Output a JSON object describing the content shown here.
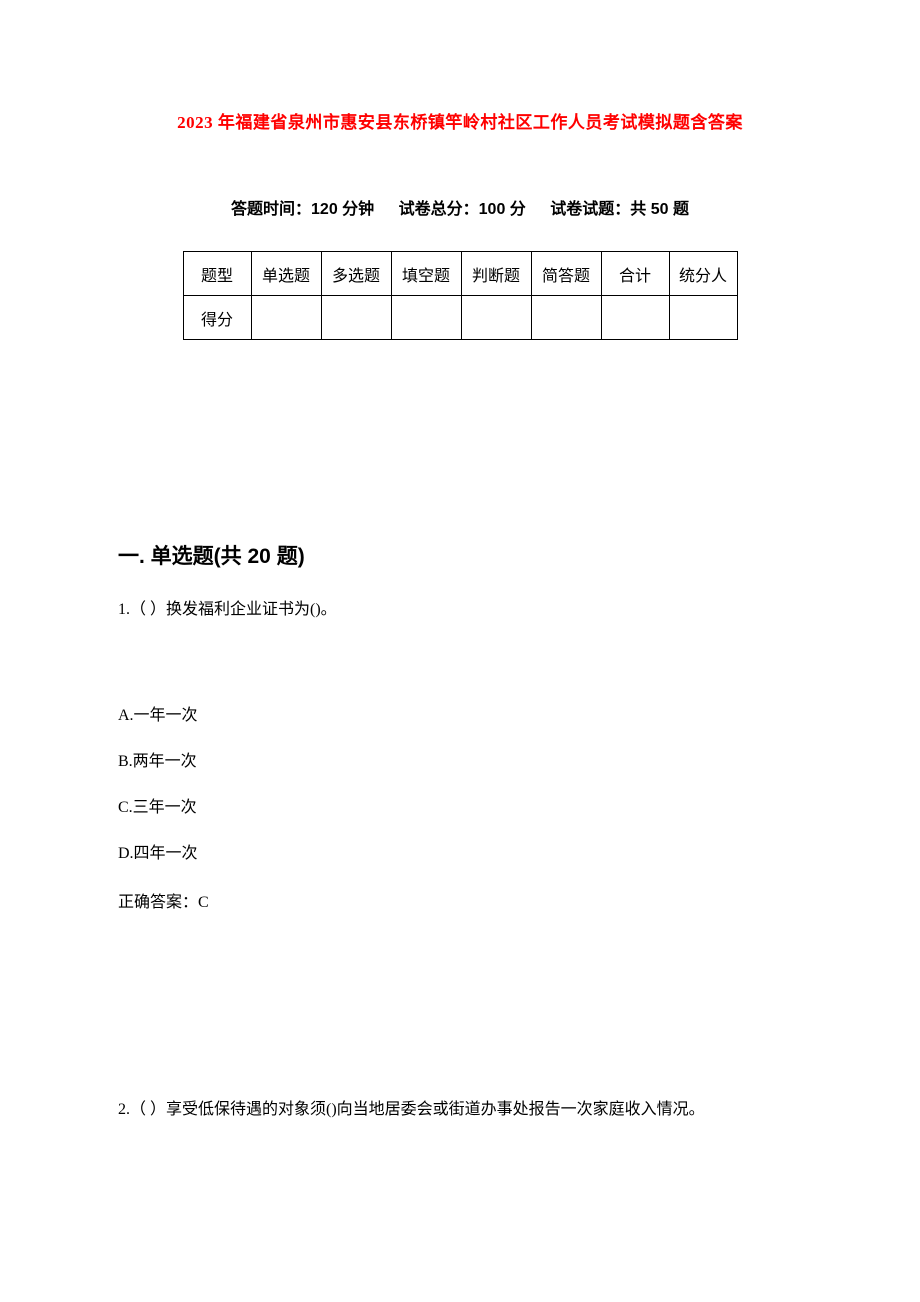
{
  "title": "2023 年福建省泉州市惠安县东桥镇竿岭村社区工作人员考试模拟题含答案",
  "exam_info": {
    "time": "答题时间：120 分钟",
    "total": "试卷总分：100 分",
    "count": "试卷试题：共 50 题"
  },
  "table": {
    "row1": [
      "题型",
      "单选题",
      "多选题",
      "填空题",
      "判断题",
      "简答题",
      "合计",
      "统分人"
    ],
    "row2_label": "得分",
    "col_widths": {
      "type": 68,
      "q": 70,
      "total": 68,
      "scorer": 68
    },
    "border_color": "#000000"
  },
  "section1": {
    "header": "一. 单选题(共 20 题)",
    "q1": {
      "stem": "1.（ ）换发福利企业证书为()。",
      "options": {
        "a": "A.一年一次",
        "b": "B.两年一次",
        "c": "C.三年一次",
        "d": "D.四年一次"
      },
      "answer": "正确答案：C"
    },
    "q2": {
      "stem": "2.（ ）享受低保待遇的对象须()向当地居委会或街道办事处报告一次家庭收入情况。"
    }
  },
  "colors": {
    "title": "#ff0000",
    "text": "#000000",
    "background": "#ffffff"
  },
  "fonts": {
    "title_size": 17,
    "info_size": 16,
    "body_size": 16,
    "section_size": 21
  }
}
